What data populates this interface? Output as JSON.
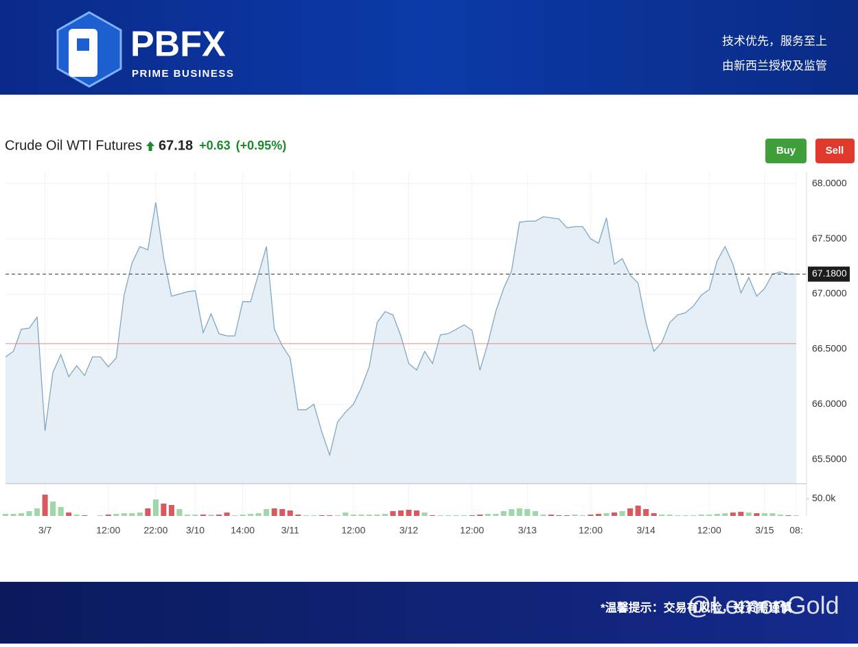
{
  "header": {
    "brand": "PBFX",
    "tagline": "PRIME BUSINESS",
    "slogan": "技术优先，服务至上",
    "regulation": "由新西兰授权及监管"
  },
  "buttons": [
    "Buy",
    "Sell"
  ],
  "footer": {
    "note": "*温馨提示：交易有风险，投资需谨慎",
    "watermark": "@LemonGold"
  },
  "chart_data": [
    {
      "type": "area",
      "title": "Crude Oil WTI Futures",
      "price": 67.18,
      "change": {
        "value": 0.63,
        "label": "+0.63"
      },
      "change_percent": {
        "value": 0.95,
        "label": "(+0.95%)"
      },
      "categories": [
        null,
        null,
        null,
        null,
        null,
        "3/7",
        null,
        null,
        null,
        null,
        null,
        null,
        null,
        "12:00",
        null,
        null,
        null,
        null,
        null,
        "22:00",
        null,
        null,
        null,
        null,
        "3/10",
        null,
        null,
        null,
        null,
        null,
        "14:00",
        null,
        null,
        null,
        null,
        null,
        "3/11",
        null,
        null,
        null,
        null,
        null,
        null,
        null,
        "12:00",
        null,
        null,
        null,
        null,
        null,
        null,
        "3/12",
        null,
        null,
        null,
        null,
        null,
        null,
        null,
        "12:00",
        null,
        null,
        null,
        null,
        null,
        null,
        "3/13",
        null,
        null,
        null,
        null,
        null,
        null,
        null,
        "12:00",
        null,
        null,
        null,
        null,
        null,
        null,
        "3/14",
        null,
        null,
        null,
        null,
        null,
        null,
        null,
        "12:00",
        null,
        null,
        null,
        null,
        null,
        null,
        "3/15",
        null,
        null,
        null,
        "08:"
      ],
      "values": [
        66.43,
        66.48,
        66.68,
        66.69,
        66.79,
        65.76,
        66.29,
        66.45,
        66.25,
        66.35,
        66.26,
        66.43,
        66.43,
        66.34,
        66.42,
        66.99,
        67.28,
        67.43,
        67.4,
        67.83,
        67.33,
        66.98,
        67.0,
        67.02,
        67.03,
        66.65,
        66.82,
        66.64,
        66.62,
        66.62,
        66.93,
        66.93,
        67.18,
        67.43,
        66.68,
        66.53,
        66.42,
        65.95,
        65.95,
        66.0,
        65.75,
        65.54,
        65.84,
        65.93,
        66.0,
        66.15,
        66.34,
        66.74,
        66.84,
        66.81,
        66.62,
        66.37,
        66.31,
        66.48,
        66.37,
        66.63,
        66.64,
        66.68,
        66.72,
        66.67,
        66.31,
        66.55,
        66.84,
        67.05,
        67.21,
        67.65,
        67.66,
        67.66,
        67.7,
        67.69,
        67.68,
        67.6,
        67.61,
        67.61,
        67.5,
        67.46,
        67.69,
        67.27,
        67.32,
        67.17,
        67.1,
        66.74,
        66.48,
        66.56,
        66.74,
        66.81,
        66.83,
        66.89,
        66.99,
        67.04,
        67.3,
        67.43,
        67.27,
        67.01,
        67.15,
        66.98,
        67.05,
        67.18,
        67.2,
        67.18,
        67.18
      ],
      "color": "#7fa7c4",
      "fill": "#e6eef6",
      "ylim": [
        65.28,
        68.11
      ],
      "yticks": [
        {
          "value": 65.5,
          "label": "65.5000"
        },
        {
          "value": 66,
          "label": "66.0000"
        },
        {
          "value": 66.5,
          "label": "66.5000"
        },
        {
          "value": 67,
          "label": "67.0000"
        },
        {
          "value": 67.5,
          "label": "67.5000"
        },
        {
          "value": 68,
          "label": "68.0000"
        }
      ],
      "last_value": {
        "value": 67.18,
        "label": "67.1800"
      },
      "reference_line": 66.55,
      "reference_color": "#e08a8a",
      "grid": true
    },
    {
      "type": "bar",
      "values": [
        6000,
        6000,
        8000,
        14000,
        22000,
        62000,
        42000,
        26000,
        10000,
        4000,
        2000,
        0,
        2000,
        4000,
        6000,
        8000,
        8000,
        10000,
        22000,
        48000,
        36000,
        32000,
        20000,
        4000,
        4000,
        4000,
        4000,
        4000,
        10000,
        2000,
        4000,
        6000,
        8000,
        20000,
        22000,
        20000,
        16000,
        4000,
        2000,
        2000,
        2000,
        2000,
        2000,
        10000,
        4000,
        4000,
        4000,
        4000,
        6000,
        14000,
        16000,
        18000,
        16000,
        10000,
        2000,
        2000,
        2000,
        2000,
        2000,
        2000,
        4000,
        6000,
        6000,
        14000,
        20000,
        22000,
        20000,
        14000,
        4000,
        4000,
        2000,
        2000,
        4000,
        2000,
        4000,
        6000,
        8000,
        10000,
        14000,
        22000,
        30000,
        20000,
        8000,
        4000,
        4000,
        2000,
        2000,
        2000,
        4000,
        4000,
        6000,
        8000,
        10000,
        12000,
        10000,
        8000,
        8000,
        8000,
        4000,
        2000,
        2000
      ],
      "up_color": "#9fd6aa",
      "down_color": "#d9595f",
      "ylim": [
        0,
        88000
      ],
      "yticks": [
        {
          "value": 50000,
          "label": "50.0k"
        }
      ]
    }
  ]
}
